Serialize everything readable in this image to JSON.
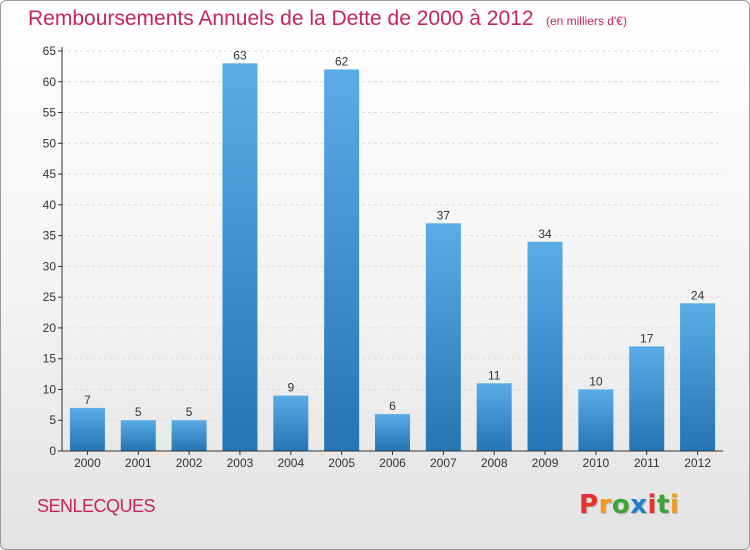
{
  "header": {
    "title": "Remboursements Annuels de la Dette de 2000 à 2012",
    "unit": "(en milliers d'€)"
  },
  "footer": {
    "commune": "SENLECQUES",
    "brand": "Proxiti",
    "brand_colors": [
      "#e8312f",
      "#f29a1a",
      "#3aa635",
      "#1f7fd1",
      "#e8312f",
      "#3aa635",
      "#f29a1a"
    ]
  },
  "colors": {
    "bar_top": "#5aace6",
    "bar_bottom": "#2574b4",
    "title": "#c8245a",
    "grid": "#dcdcdc",
    "axis": "#333333"
  },
  "chart_data": {
    "type": "bar",
    "title": "Remboursements Annuels de la Dette de 2000 à 2012",
    "subtitle": "(en milliers d'€)",
    "xlabel": "",
    "ylabel": "",
    "categories": [
      "2000",
      "2001",
      "2002",
      "2003",
      "2004",
      "2005",
      "2006",
      "2007",
      "2008",
      "2009",
      "2010",
      "2011",
      "2012"
    ],
    "values": [
      7,
      5,
      5,
      63,
      9,
      62,
      6,
      37,
      11,
      34,
      10,
      17,
      24
    ],
    "ylim": [
      0,
      65
    ],
    "yticks": [
      0,
      5,
      10,
      15,
      20,
      25,
      30,
      35,
      40,
      45,
      50,
      55,
      60,
      65
    ],
    "grid": "horizontal dashed",
    "data_labels": true
  }
}
